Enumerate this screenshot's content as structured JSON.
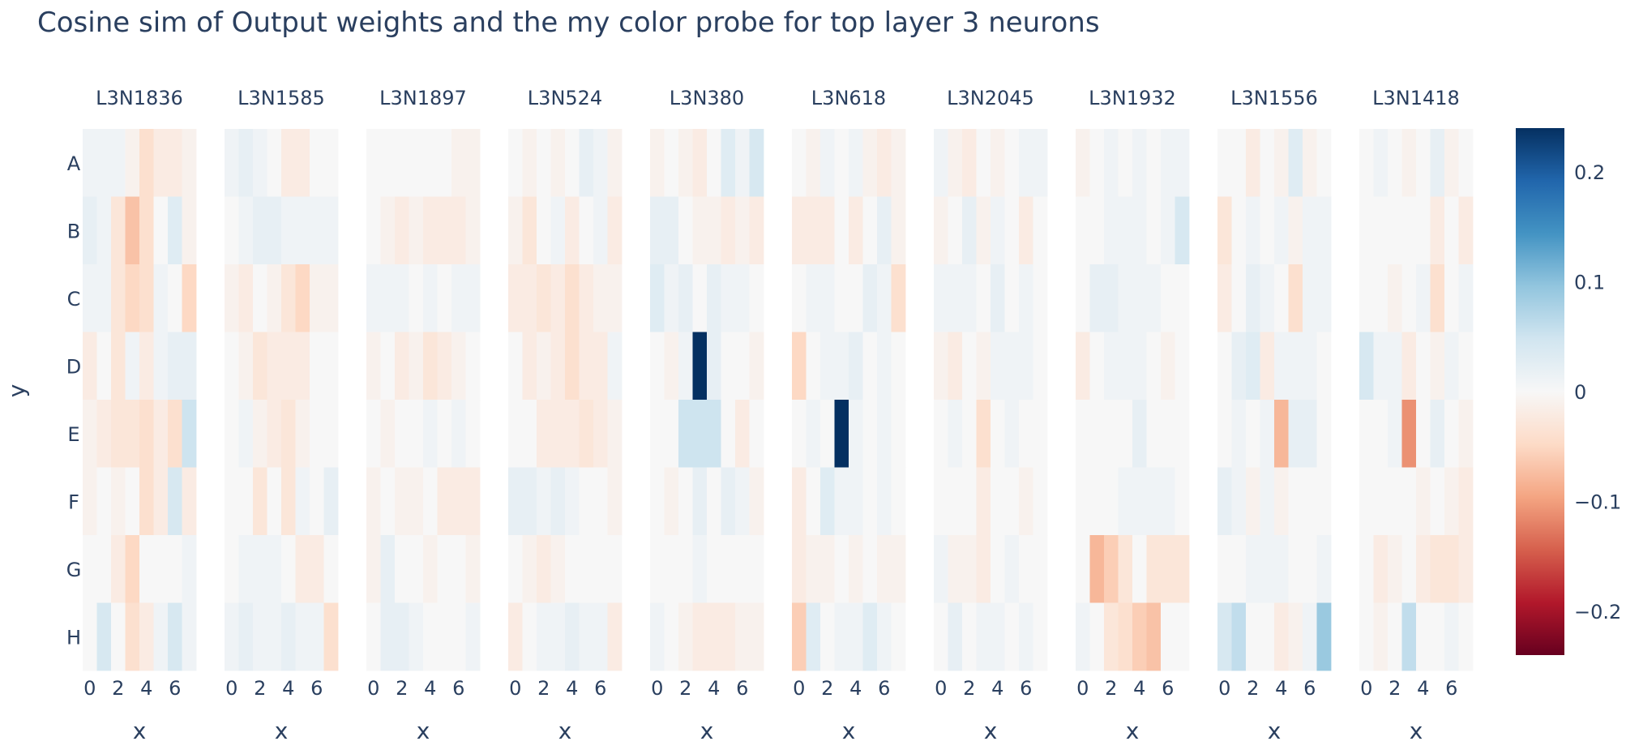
{
  "chart_data": {
    "type": "heatmap",
    "title": "Cosine sim of Output weights and the my color probe for top layer 3 neurons",
    "xlabel": "x",
    "ylabel": "y",
    "x_tick_labels": [
      "0",
      "2",
      "4",
      "6"
    ],
    "x_tick_values": [
      0,
      2,
      4,
      6
    ],
    "y_categories": [
      "A",
      "B",
      "C",
      "D",
      "E",
      "F",
      "G",
      "H"
    ],
    "x_values": [
      0,
      1,
      2,
      3,
      4,
      5,
      6,
      7
    ],
    "zmin": -0.24,
    "zmax": 0.24,
    "colorscale": "RdBu",
    "colorbar_ticks": [
      {
        "value": 0.2,
        "label": "0.2"
      },
      {
        "value": 0.1,
        "label": "0.1"
      },
      {
        "value": 0,
        "label": "0"
      },
      {
        "value": -0.1,
        "label": "−0.1"
      },
      {
        "value": -0.2,
        "label": "−0.2"
      }
    ],
    "panels": [
      {
        "name": "L3N1836",
        "z": [
          [
            0.01,
            0.01,
            0.01,
            -0.01,
            -0.04,
            -0.02,
            -0.02,
            -0.01
          ],
          [
            0.02,
            0.01,
            -0.03,
            -0.07,
            -0.04,
            0.0,
            0.03,
            -0.01
          ],
          [
            0.01,
            0.01,
            -0.03,
            -0.05,
            -0.04,
            0.01,
            0.0,
            -0.05
          ],
          [
            -0.02,
            0.0,
            -0.03,
            0.01,
            -0.02,
            0.01,
            0.02,
            0.02
          ],
          [
            -0.01,
            -0.02,
            -0.03,
            -0.03,
            -0.04,
            -0.02,
            -0.04,
            0.05
          ],
          [
            -0.01,
            0.0,
            -0.01,
            0.0,
            -0.04,
            -0.02,
            0.04,
            -0.02
          ],
          [
            0.0,
            0.0,
            -0.02,
            -0.05,
            0.0,
            0.0,
            0.0,
            0.01
          ],
          [
            0.0,
            0.04,
            0.0,
            -0.04,
            -0.02,
            0.01,
            0.04,
            0.01
          ]
        ]
      },
      {
        "name": "L3N1585",
        "z": [
          [
            0.01,
            0.02,
            0.01,
            0.0,
            -0.02,
            -0.02,
            0.0,
            0.0
          ],
          [
            0.0,
            0.01,
            0.02,
            0.02,
            0.01,
            0.01,
            0.01,
            0.01
          ],
          [
            -0.01,
            -0.02,
            0.0,
            -0.01,
            -0.03,
            -0.05,
            -0.01,
            -0.01
          ],
          [
            0.0,
            -0.01,
            -0.03,
            -0.02,
            -0.02,
            -0.02,
            0.0,
            0.0
          ],
          [
            0.0,
            0.01,
            -0.01,
            -0.02,
            -0.03,
            -0.01,
            0.0,
            0.0
          ],
          [
            0.0,
            0.0,
            -0.03,
            0.0,
            -0.03,
            0.01,
            0.0,
            0.02
          ],
          [
            0.0,
            0.01,
            0.01,
            0.01,
            0.0,
            -0.02,
            -0.02,
            0.0
          ],
          [
            0.01,
            0.02,
            0.01,
            0.01,
            0.02,
            0.01,
            0.01,
            -0.04
          ]
        ]
      },
      {
        "name": "L3N1897",
        "z": [
          [
            0.0,
            0.0,
            0.0,
            0.0,
            0.0,
            0.0,
            -0.01,
            -0.01
          ],
          [
            0.0,
            -0.01,
            -0.02,
            -0.01,
            -0.02,
            -0.02,
            -0.02,
            -0.01
          ],
          [
            0.01,
            0.01,
            0.01,
            0.0,
            0.01,
            0.0,
            0.01,
            0.01
          ],
          [
            -0.01,
            0.0,
            -0.02,
            -0.01,
            -0.03,
            -0.02,
            -0.01,
            0.0
          ],
          [
            0.0,
            -0.01,
            0.0,
            0.0,
            0.01,
            0.0,
            0.01,
            0.0
          ],
          [
            -0.01,
            0.0,
            -0.01,
            -0.01,
            0.0,
            -0.02,
            -0.02,
            -0.02
          ],
          [
            -0.01,
            0.02,
            0.0,
            0.0,
            -0.01,
            0.0,
            0.0,
            -0.01
          ],
          [
            0.0,
            0.02,
            0.02,
            0.01,
            0.0,
            0.0,
            0.0,
            0.01
          ]
        ]
      },
      {
        "name": "L3N524",
        "z": [
          [
            0.0,
            -0.01,
            0.0,
            -0.01,
            0.0,
            0.02,
            0.01,
            -0.01
          ],
          [
            -0.01,
            -0.03,
            0.0,
            0.01,
            -0.02,
            0.0,
            0.01,
            -0.02
          ],
          [
            -0.02,
            -0.02,
            -0.03,
            -0.02,
            -0.04,
            -0.02,
            -0.01,
            -0.01
          ],
          [
            0.0,
            -0.02,
            -0.01,
            -0.02,
            -0.04,
            -0.02,
            -0.02,
            0.01
          ],
          [
            0.0,
            0.0,
            -0.02,
            -0.02,
            -0.02,
            -0.03,
            -0.02,
            -0.01
          ],
          [
            0.02,
            0.02,
            0.01,
            0.02,
            0.01,
            0.0,
            0.0,
            -0.01
          ],
          [
            0.0,
            -0.01,
            -0.02,
            -0.01,
            0.0,
            0.0,
            0.0,
            0.0
          ],
          [
            -0.02,
            0.0,
            0.01,
            0.01,
            0.02,
            0.01,
            0.01,
            -0.02
          ]
        ]
      },
      {
        "name": "L3N380",
        "z": [
          [
            -0.01,
            0.0,
            -0.01,
            -0.02,
            0.0,
            0.03,
            0.01,
            0.04
          ],
          [
            0.02,
            0.02,
            0.0,
            -0.01,
            -0.01,
            -0.02,
            -0.01,
            -0.02
          ],
          [
            0.03,
            0.01,
            0.02,
            0.0,
            0.02,
            0.01,
            0.01,
            0.0
          ],
          [
            0.0,
            -0.01,
            0.01,
            0.24,
            0.02,
            0.0,
            0.0,
            -0.01
          ],
          [
            0.0,
            0.0,
            0.05,
            0.05,
            0.05,
            0.0,
            -0.02,
            0.0
          ],
          [
            0.0,
            -0.01,
            0.0,
            0.02,
            0.0,
            0.02,
            0.01,
            -0.01
          ],
          [
            0.0,
            0.0,
            0.0,
            0.01,
            0.0,
            0.0,
            0.0,
            0.0
          ],
          [
            0.01,
            0.0,
            -0.01,
            -0.02,
            -0.02,
            -0.02,
            -0.01,
            -0.01
          ]
        ]
      },
      {
        "name": "L3N618",
        "z": [
          [
            0.0,
            -0.01,
            0.01,
            0.0,
            0.01,
            -0.01,
            -0.02,
            -0.01
          ],
          [
            -0.02,
            -0.02,
            -0.02,
            0.0,
            -0.02,
            0.0,
            0.02,
            -0.01
          ],
          [
            0.0,
            0.01,
            0.01,
            0.0,
            0.0,
            0.02,
            0.01,
            -0.04
          ],
          [
            -0.05,
            0.0,
            0.01,
            0.01,
            0.02,
            0.0,
            0.01,
            0.0
          ],
          [
            0.0,
            0.01,
            0.0,
            0.24,
            0.01,
            0.0,
            0.01,
            0.0
          ],
          [
            -0.02,
            0.0,
            0.03,
            0.01,
            0.01,
            0.0,
            0.01,
            0.0
          ],
          [
            -0.02,
            -0.01,
            -0.01,
            0.0,
            -0.01,
            0.0,
            -0.01,
            -0.01
          ],
          [
            -0.06,
            0.03,
            0.0,
            0.01,
            0.01,
            0.03,
            0.01,
            0.0
          ]
        ]
      },
      {
        "name": "L3N2045",
        "z": [
          [
            0.01,
            -0.01,
            -0.02,
            0.0,
            -0.01,
            0.0,
            0.01,
            0.01
          ],
          [
            -0.01,
            0.0,
            0.02,
            -0.01,
            0.01,
            0.0,
            -0.02,
            0.0
          ],
          [
            0.01,
            0.01,
            0.01,
            0.0,
            0.02,
            0.0,
            0.01,
            0.0
          ],
          [
            -0.01,
            -0.02,
            0.0,
            -0.01,
            0.01,
            0.01,
            0.01,
            0.0
          ],
          [
            0.0,
            0.01,
            0.0,
            -0.04,
            0.0,
            0.01,
            0.0,
            0.0
          ],
          [
            0.0,
            0.0,
            0.0,
            -0.02,
            0.0,
            0.0,
            -0.01,
            0.0
          ],
          [
            0.01,
            -0.01,
            -0.01,
            -0.02,
            0.0,
            0.01,
            0.0,
            0.0
          ],
          [
            0.0,
            0.02,
            0.0,
            0.01,
            0.01,
            0.0,
            0.01,
            0.0
          ]
        ]
      },
      {
        "name": "L3N1932",
        "z": [
          [
            -0.01,
            0.0,
            0.01,
            0.0,
            0.01,
            0.0,
            0.01,
            0.01
          ],
          [
            0.0,
            0.0,
            0.01,
            0.01,
            0.01,
            0.0,
            0.01,
            0.04
          ],
          [
            0.0,
            0.02,
            0.02,
            0.01,
            0.01,
            0.01,
            0.0,
            0.0
          ],
          [
            -0.02,
            0.0,
            0.01,
            0.01,
            0.01,
            0.0,
            -0.01,
            0.0
          ],
          [
            0.0,
            0.0,
            0.0,
            0.0,
            0.02,
            0.0,
            0.0,
            0.0
          ],
          [
            0.0,
            0.0,
            0.0,
            0.01,
            0.01,
            0.01,
            0.01,
            0.0
          ],
          [
            0.0,
            -0.08,
            -0.06,
            -0.03,
            0.0,
            -0.03,
            -0.03,
            -0.03
          ],
          [
            0.01,
            0.0,
            -0.03,
            -0.04,
            -0.06,
            -0.07,
            0.0,
            0.0
          ]
        ]
      },
      {
        "name": "L3N1556",
        "z": [
          [
            0.0,
            0.0,
            -0.02,
            0.0,
            -0.01,
            0.03,
            -0.01,
            0.0
          ],
          [
            -0.03,
            0.0,
            0.01,
            0.0,
            0.01,
            -0.01,
            0.01,
            0.01
          ],
          [
            -0.02,
            0.0,
            0.02,
            0.01,
            0.0,
            -0.04,
            0.01,
            0.01
          ],
          [
            0.0,
            0.02,
            0.03,
            -0.02,
            0.01,
            0.01,
            0.01,
            0.0
          ],
          [
            0.0,
            0.01,
            0.0,
            0.01,
            -0.08,
            0.02,
            0.02,
            0.0
          ],
          [
            0.02,
            0.01,
            -0.01,
            0.01,
            -0.01,
            0.0,
            0.0,
            0.0
          ],
          [
            0.0,
            0.0,
            0.01,
            0.01,
            0.01,
            0.0,
            0.0,
            0.01
          ],
          [
            0.04,
            0.06,
            0.0,
            0.0,
            -0.02,
            -0.01,
            0.01,
            0.09
          ]
        ]
      },
      {
        "name": "L3N1418",
        "z": [
          [
            0.0,
            0.01,
            0.0,
            -0.01,
            0.0,
            0.02,
            -0.01,
            0.0
          ],
          [
            0.0,
            0.0,
            0.0,
            0.0,
            0.0,
            -0.02,
            0.0,
            -0.02
          ],
          [
            0.0,
            0.0,
            -0.01,
            0.0,
            0.01,
            -0.04,
            0.0,
            0.01
          ],
          [
            0.04,
            0.01,
            0.01,
            -0.02,
            0.0,
            -0.01,
            0.01,
            0.0
          ],
          [
            0.0,
            0.0,
            0.01,
            -0.11,
            0.0,
            0.02,
            0.0,
            -0.01
          ],
          [
            0.0,
            0.0,
            0.0,
            0.0,
            -0.01,
            0.0,
            -0.01,
            -0.02
          ],
          [
            0.0,
            -0.02,
            -0.01,
            0.0,
            -0.02,
            -0.03,
            -0.03,
            -0.02
          ],
          [
            0.0,
            -0.01,
            0.0,
            0.06,
            0.0,
            0.0,
            0.01,
            0.0
          ]
        ]
      }
    ]
  }
}
